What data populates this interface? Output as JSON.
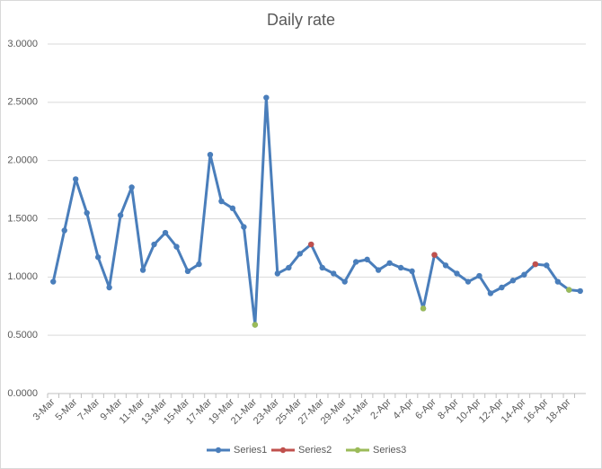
{
  "chart_data": {
    "type": "line",
    "title": "Daily rate",
    "categories": [
      "3-Mar",
      null,
      "5-Mar",
      null,
      "7-Mar",
      null,
      "9-Mar",
      null,
      "11-Mar",
      null,
      "13-Mar",
      null,
      "15-Mar",
      null,
      "17-Mar",
      null,
      "19-Mar",
      null,
      "21-Mar",
      null,
      "23-Mar",
      null,
      "25-Mar",
      null,
      "27-Mar",
      null,
      "29-Mar",
      null,
      "31-Mar",
      null,
      "2-Apr",
      null,
      "4-Apr",
      null,
      "6-Apr",
      null,
      "8-Apr",
      null,
      "10-Apr",
      null,
      "12-Apr",
      null,
      "14-Apr",
      null,
      "16-Apr",
      null,
      "18-Apr",
      null
    ],
    "series": [
      {
        "name": "Series1",
        "color": "#4a7ebb",
        "values": [
          0.96,
          1.4,
          1.84,
          1.55,
          1.17,
          0.91,
          1.53,
          1.77,
          1.06,
          1.28,
          1.38,
          1.26,
          1.05,
          1.11,
          2.05,
          1.65,
          1.59,
          1.43,
          0.59,
          2.54,
          1.03,
          1.08,
          1.2,
          1.28,
          1.08,
          1.03,
          0.96,
          1.13,
          1.15,
          1.06,
          1.12,
          1.08,
          1.05,
          0.73,
          1.19,
          1.1,
          1.03,
          0.96,
          1.01,
          0.86,
          0.91,
          0.97,
          1.02,
          1.11,
          1.1,
          0.96,
          0.89,
          0.88
        ]
      },
      {
        "name": "Series2",
        "color": "#c0504d",
        "values": [
          null,
          null,
          null,
          null,
          null,
          null,
          null,
          null,
          null,
          null,
          null,
          null,
          null,
          null,
          null,
          null,
          null,
          null,
          null,
          null,
          null,
          null,
          null,
          1.28,
          null,
          null,
          null,
          null,
          null,
          null,
          null,
          null,
          null,
          null,
          1.19,
          null,
          null,
          null,
          null,
          null,
          null,
          null,
          null,
          1.11,
          null,
          null,
          null,
          null
        ]
      },
      {
        "name": "Series3",
        "color": "#9bbb59",
        "values": [
          null,
          null,
          null,
          null,
          null,
          null,
          null,
          null,
          null,
          null,
          null,
          null,
          null,
          null,
          null,
          null,
          null,
          null,
          0.59,
          null,
          null,
          null,
          null,
          null,
          null,
          null,
          null,
          null,
          null,
          null,
          null,
          null,
          null,
          0.73,
          null,
          null,
          null,
          null,
          null,
          null,
          null,
          null,
          null,
          null,
          null,
          null,
          0.89,
          null
        ]
      }
    ],
    "ylim": [
      0,
      3
    ],
    "yticks": [
      {
        "value": 0,
        "label": "0.0000"
      },
      {
        "value": 0.5,
        "label": "0.5000"
      },
      {
        "value": 1,
        "label": "1.0000"
      },
      {
        "value": 1.5,
        "label": "1.5000"
      },
      {
        "value": 2,
        "label": "2.0000"
      },
      {
        "value": 2.5,
        "label": "2.5000"
      },
      {
        "value": 3,
        "label": "3.0000"
      }
    ],
    "grid": true,
    "legend": "bottom"
  }
}
